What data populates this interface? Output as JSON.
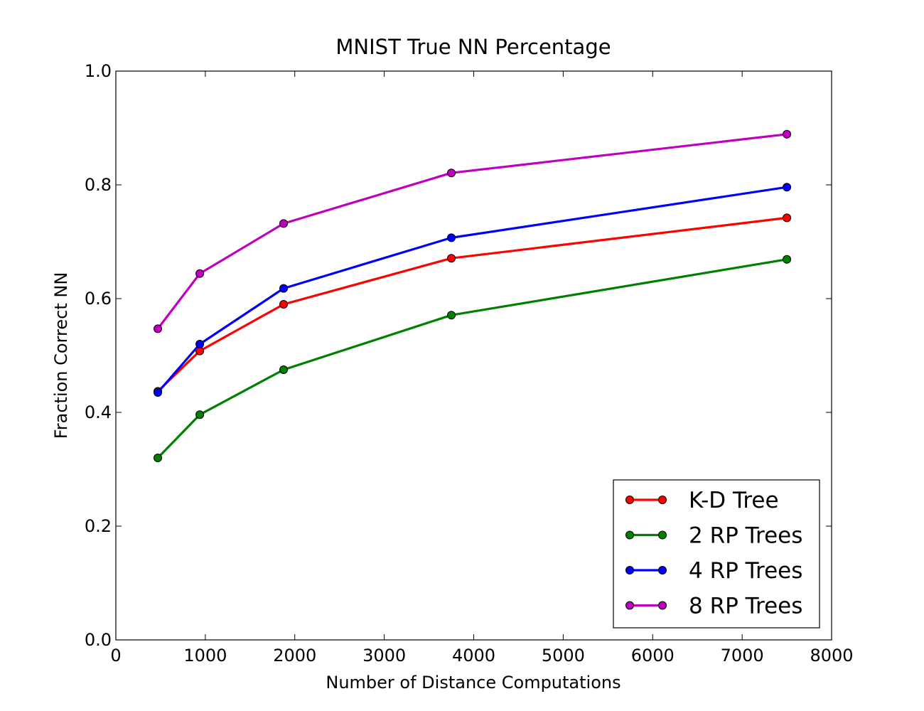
{
  "chart_data": {
    "type": "line",
    "title": "MNIST True NN Percentage",
    "xlabel": "Number of Distance Computations",
    "ylabel": "Fraction Correct NN",
    "xlim": [
      0,
      8000
    ],
    "ylim": [
      0.0,
      1.0
    ],
    "xticks": [
      0,
      1000,
      2000,
      3000,
      4000,
      5000,
      6000,
      7000,
      8000
    ],
    "yticks": [
      0.0,
      0.2,
      0.4,
      0.6,
      0.8,
      1.0
    ],
    "xtick_labels": [
      "0",
      "1000",
      "2000",
      "3000",
      "4000",
      "5000",
      "6000",
      "7000",
      "8000"
    ],
    "ytick_labels": [
      "0.0",
      "0.2",
      "0.4",
      "0.6",
      "0.8",
      "1.0"
    ],
    "grid": false,
    "legend_position": "lower-right",
    "x": [
      469,
      938,
      1875,
      3750,
      7500
    ],
    "series": [
      {
        "name": "K-D Tree",
        "color": "#ff0000",
        "values": [
          0.437,
          0.508,
          0.59,
          0.671,
          0.742
        ]
      },
      {
        "name": "2 RP Trees",
        "color": "#008000",
        "values": [
          0.32,
          0.396,
          0.475,
          0.571,
          0.669
        ]
      },
      {
        "name": "4 RP Trees",
        "color": "#0000ff",
        "values": [
          0.435,
          0.52,
          0.618,
          0.707,
          0.796
        ]
      },
      {
        "name": "8 RP Trees",
        "color": "#bf00bf",
        "values": [
          0.547,
          0.644,
          0.732,
          0.821,
          0.889
        ]
      }
    ]
  }
}
